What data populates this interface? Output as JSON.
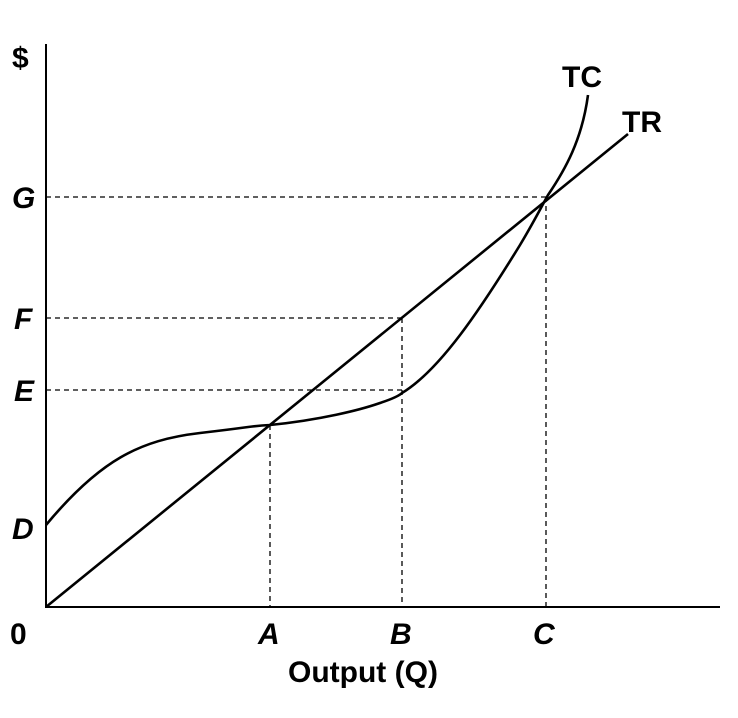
{
  "y_axis_symbol": "$",
  "x_axis_title": "Output (Q)",
  "origin_label": "0",
  "curves": {
    "tc": "TC",
    "tr": "TR"
  },
  "y_ticks": [
    "G",
    "F",
    "E",
    "D"
  ],
  "x_ticks": [
    "A",
    "B",
    "C"
  ]
}
